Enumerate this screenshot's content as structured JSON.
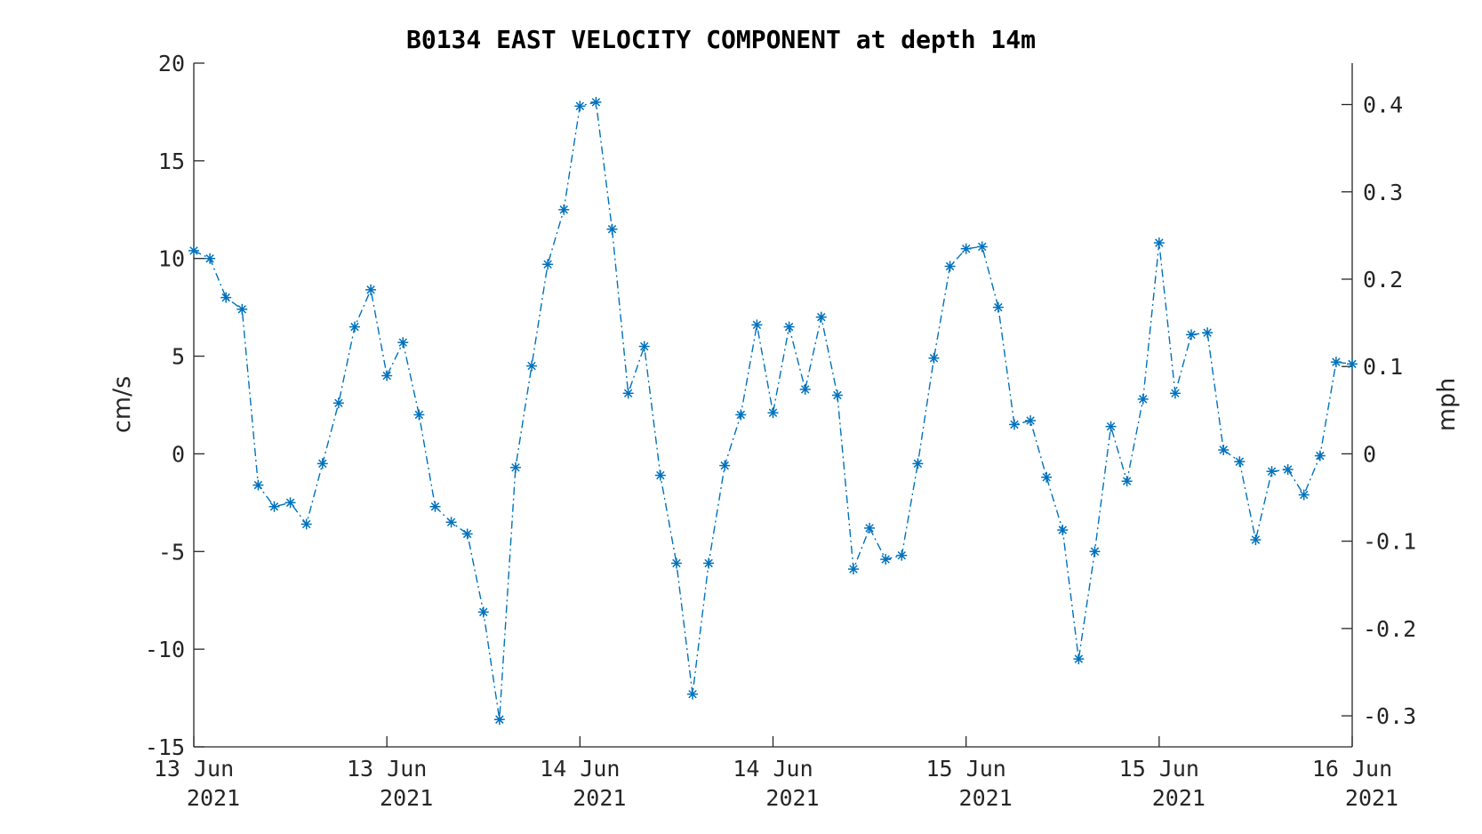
{
  "chart_data": {
    "type": "line",
    "title": "B0134 EAST VELOCITY COMPONENT at depth 14m",
    "ylabel": "cm/s",
    "ylabel_right": "mph",
    "ylim": [
      -15,
      20
    ],
    "yticks": [
      -15,
      -10,
      -5,
      0,
      5,
      10,
      15,
      20
    ],
    "yticks_right": [
      -0.3,
      -0.2,
      -0.1,
      0,
      0.1,
      0.2,
      0.3,
      0.4
    ],
    "xlim": [
      0,
      72
    ],
    "xticks": [
      {
        "at": 0,
        "line1": "13 Jun",
        "line2": "2021"
      },
      {
        "at": 12,
        "line1": "13 Jun",
        "line2": "2021"
      },
      {
        "at": 24,
        "line1": "14 Jun",
        "line2": "2021"
      },
      {
        "at": 36,
        "line1": "14 Jun",
        "line2": "2021"
      },
      {
        "at": 48,
        "line1": "15 Jun",
        "line2": "2021"
      },
      {
        "at": 60,
        "line1": "15 Jun",
        "line2": "2021"
      },
      {
        "at": 72,
        "line1": "16 Jun",
        "line2": "2021"
      }
    ],
    "grid": false,
    "color": "#0072BD",
    "series": [
      {
        "values": [
          10.4,
          10.0,
          8.0,
          7.4,
          -1.6,
          -2.7,
          -2.5,
          -3.6,
          -0.5,
          2.6,
          6.5,
          8.4,
          4.0,
          5.7,
          2.0,
          -2.7,
          -3.5,
          -4.1,
          -8.1,
          -13.6,
          -0.7,
          4.5,
          9.7,
          12.5,
          17.8,
          18.0,
          11.5,
          3.1,
          5.5,
          -1.1,
          -5.6,
          -12.3,
          -5.6,
          -0.6,
          2.0,
          6.6,
          2.1,
          6.5,
          3.3,
          7.0,
          3.0,
          -5.9,
          -3.8,
          -5.4,
          -5.2,
          -0.5,
          4.9,
          9.6,
          10.5,
          10.6,
          7.5,
          1.5,
          1.7,
          -1.2,
          -3.9,
          -10.5,
          -5.0,
          1.4,
          -1.4,
          2.8,
          10.8,
          3.1,
          6.1,
          6.2,
          0.2,
          -0.4,
          -4.4,
          -0.9,
          -0.8,
          -2.1,
          -0.1,
          4.7,
          4.6
        ]
      }
    ]
  }
}
